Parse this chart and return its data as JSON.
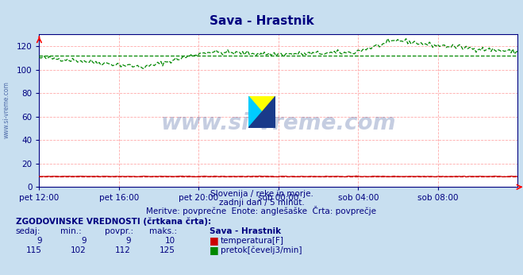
{
  "title": "Sava - Hrastnik",
  "title_color": "#000080",
  "bg_color": "#c8dff0",
  "plot_bg_color": "#ffffff",
  "grid_color": "#ffaaaa",
  "x_labels": [
    "pet 12:00",
    "pet 16:00",
    "pet 20:00",
    "sob 00:00",
    "sob 04:00",
    "sob 08:00"
  ],
  "ylim": [
    0,
    130
  ],
  "yticks": [
    0,
    20,
    40,
    60,
    80,
    100,
    120
  ],
  "axis_color": "#000080",
  "tick_color": "#000080",
  "watermark_text": "www.si-vreme.com",
  "watermark_color": "#1a3a8a",
  "watermark_alpha": 0.25,
  "sub_text1": "Slovenija / reke in morje.",
  "sub_text2": "zadnji dan / 5 minut.",
  "sub_text3": "Meritve: povprečne  Enote: anglešaške  Črta: povprečje",
  "sub_text_color": "#000080",
  "footer_title": "ZGODOVINSKE VREDNOSTI (črtkana črta):",
  "footer_col_headers": [
    "sedaj:",
    "min.:",
    "povpr.:",
    "maks.:",
    "Sava - Hrastnik"
  ],
  "footer_temp_row": [
    "9",
    "9",
    "9",
    "10",
    "temperatura[F]"
  ],
  "footer_flow_row": [
    "115",
    "102",
    "112",
    "125",
    "pretok[čevelj3/min]"
  ],
  "temp_color": "#cc0000",
  "flow_color": "#008800",
  "avg_flow_value": 112,
  "avg_temp_value": 9,
  "n_points": 288,
  "left_label": "www.si-vreme.com",
  "logo_yellow": "#ffff00",
  "logo_cyan": "#00ccff",
  "logo_dark": "#1a3a8a"
}
